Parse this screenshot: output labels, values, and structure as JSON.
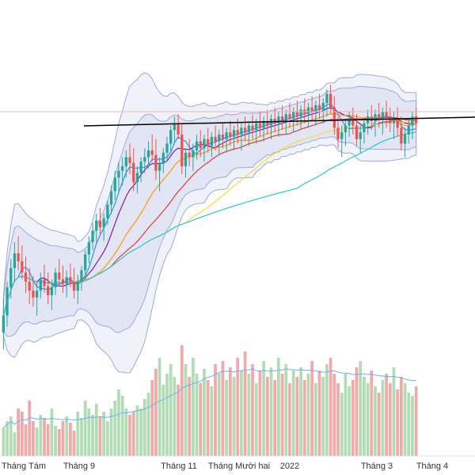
{
  "chart_data": {
    "type": "candlestick",
    "x_tick_labels": [
      "Tháng Tám",
      "Tháng 9",
      "Tháng 11",
      "Tháng Mười hai",
      "2022",
      "Tháng 3",
      "Tháng 4"
    ],
    "candles": {
      "up_color": "#26a69a",
      "down_color": "#ef5350",
      "ohlc": [
        [
          315,
          345,
          300,
          330
        ],
        [
          330,
          360,
          320,
          355
        ],
        [
          355,
          380,
          345,
          372
        ],
        [
          372,
          395,
          360,
          385
        ],
        [
          385,
          400,
          370,
          378
        ],
        [
          378,
          392,
          362,
          368
        ],
        [
          368,
          382,
          350,
          360
        ],
        [
          360,
          372,
          340,
          352
        ],
        [
          352,
          365,
          338,
          346
        ],
        [
          346,
          360,
          330,
          352
        ],
        [
          352,
          368,
          345,
          362
        ],
        [
          362,
          375,
          350,
          356
        ],
        [
          356,
          368,
          340,
          348
        ],
        [
          348,
          362,
          335,
          355
        ],
        [
          355,
          372,
          348,
          368
        ],
        [
          368,
          380,
          356,
          362
        ],
        [
          362,
          374,
          350,
          358
        ],
        [
          358,
          370,
          346,
          364
        ],
        [
          364,
          376,
          355,
          360
        ],
        [
          360,
          372,
          345,
          352
        ],
        [
          352,
          366,
          340,
          360
        ],
        [
          360,
          374,
          352,
          370
        ],
        [
          370,
          388,
          362,
          384
        ],
        [
          384,
          400,
          376,
          395
        ],
        [
          395,
          412,
          388,
          405
        ],
        [
          405,
          420,
          395,
          414
        ],
        [
          414,
          425,
          402,
          408
        ],
        [
          408,
          420,
          396,
          416
        ],
        [
          416,
          432,
          410,
          428
        ],
        [
          428,
          445,
          420,
          440
        ],
        [
          440,
          458,
          432,
          452
        ],
        [
          452,
          466,
          440,
          458
        ],
        [
          458,
          470,
          445,
          462
        ],
        [
          462,
          476,
          452,
          470
        ],
        [
          470,
          482,
          455,
          465
        ],
        [
          465,
          478,
          440,
          448
        ],
        [
          448,
          462,
          438,
          456
        ],
        [
          456,
          470,
          448,
          466
        ],
        [
          466,
          478,
          456,
          470
        ],
        [
          470,
          484,
          460,
          476
        ],
        [
          476,
          490,
          466,
          472
        ],
        [
          472,
          486,
          450,
          458
        ],
        [
          458,
          470,
          440,
          464
        ],
        [
          464,
          478,
          456,
          474
        ],
        [
          474,
          488,
          466,
          482
        ],
        [
          482,
          498,
          474,
          494
        ],
        [
          494,
          506,
          482,
          500
        ],
        [
          500,
          508,
          486,
          490
        ],
        [
          490,
          500,
          455,
          462
        ],
        [
          462,
          478,
          452,
          474
        ],
        [
          474,
          486,
          462,
          470
        ],
        [
          470,
          482,
          458,
          476
        ],
        [
          476,
          490,
          468,
          484
        ],
        [
          484,
          494,
          470,
          478
        ],
        [
          478,
          490,
          466,
          486
        ],
        [
          486,
          496,
          474,
          480
        ],
        [
          480,
          492,
          470,
          488
        ],
        [
          488,
          498,
          476,
          484
        ],
        [
          484,
          494,
          472,
          490
        ],
        [
          490,
          500,
          478,
          486
        ],
        [
          486,
          496,
          474,
          492
        ],
        [
          492,
          502,
          480,
          488
        ],
        [
          488,
          498,
          476,
          494
        ],
        [
          494,
          504,
          482,
          490
        ],
        [
          490,
          500,
          476,
          496
        ],
        [
          496,
          506,
          484,
          492
        ],
        [
          492,
          502,
          480,
          498
        ],
        [
          498,
          508,
          486,
          494
        ],
        [
          494,
          504,
          482,
          500
        ],
        [
          500,
          510,
          488,
          496
        ],
        [
          496,
          506,
          484,
          502
        ],
        [
          502,
          512,
          490,
          498
        ],
        [
          498,
          508,
          486,
          504
        ],
        [
          504,
          514,
          492,
          500
        ],
        [
          500,
          510,
          488,
          506
        ],
        [
          506,
          516,
          494,
          502
        ],
        [
          502,
          512,
          490,
          508
        ],
        [
          508,
          518,
          496,
          504
        ],
        [
          504,
          514,
          492,
          510
        ],
        [
          510,
          520,
          498,
          506
        ],
        [
          506,
          516,
          494,
          512
        ],
        [
          512,
          522,
          500,
          508
        ],
        [
          508,
          518,
          496,
          514
        ],
        [
          514,
          524,
          502,
          510
        ],
        [
          510,
          520,
          498,
          516
        ],
        [
          516,
          526,
          504,
          512
        ],
        [
          512,
          522,
          500,
          518
        ],
        [
          518,
          530,
          506,
          526
        ],
        [
          526,
          534,
          508,
          514
        ],
        [
          514,
          524,
          490,
          496
        ],
        [
          496,
          506,
          478,
          486
        ],
        [
          486,
          498,
          470,
          492
        ],
        [
          492,
          504,
          480,
          498
        ],
        [
          498,
          510,
          488,
          504
        ],
        [
          504,
          514,
          490,
          498
        ],
        [
          498,
          508,
          480,
          486
        ],
        [
          486,
          498,
          474,
          492
        ],
        [
          492,
          504,
          482,
          500
        ],
        [
          500,
          512,
          490,
          506
        ],
        [
          506,
          516,
          494,
          502
        ],
        [
          502,
          512,
          488,
          508
        ],
        [
          508,
          518,
          496,
          504
        ],
        [
          504,
          514,
          490,
          510
        ],
        [
          510,
          520,
          496,
          506
        ],
        [
          506,
          514,
          492,
          500
        ],
        [
          500,
          510,
          486,
          504
        ],
        [
          504,
          514,
          488,
          496
        ],
        [
          496,
          506,
          476,
          482
        ],
        [
          482,
          496,
          470,
          490
        ],
        [
          490,
          504,
          482,
          498
        ],
        [
          498,
          510,
          486,
          506
        ],
        [
          506,
          514,
          494,
          500
        ]
      ]
    },
    "volume": {
      "colors": [
        "#ef9a9a",
        "#a5d6a7"
      ],
      "values": [
        18,
        22,
        25,
        15,
        30,
        28,
        20,
        35,
        22,
        18,
        26,
        24,
        20,
        30,
        19,
        17,
        22,
        25,
        21,
        16,
        28,
        24,
        35,
        30,
        26,
        33,
        25,
        28,
        22,
        30,
        35,
        42,
        38,
        30,
        26,
        28,
        32,
        30,
        36,
        40,
        48,
        55,
        62,
        45,
        52,
        58,
        50,
        45,
        70,
        58,
        50,
        62,
        52,
        46,
        55,
        48,
        44,
        58,
        52,
        60,
        48,
        56,
        50,
        62,
        54,
        66,
        52,
        58,
        46,
        54,
        60,
        50,
        56,
        48,
        62,
        52,
        58,
        46,
        54,
        50,
        56,
        48,
        52,
        60,
        46,
        54,
        50,
        58,
        62,
        52,
        46,
        40,
        52,
        44,
        48,
        56,
        60,
        50,
        46,
        54,
        44,
        40,
        48,
        52,
        46,
        56,
        42,
        50,
        46,
        40,
        38,
        44
      ]
    },
    "reference_line": {
      "color": "#000000"
    },
    "bands": {
      "fill": "#c5cae9",
      "stroke": "#9fa8da"
    }
  }
}
